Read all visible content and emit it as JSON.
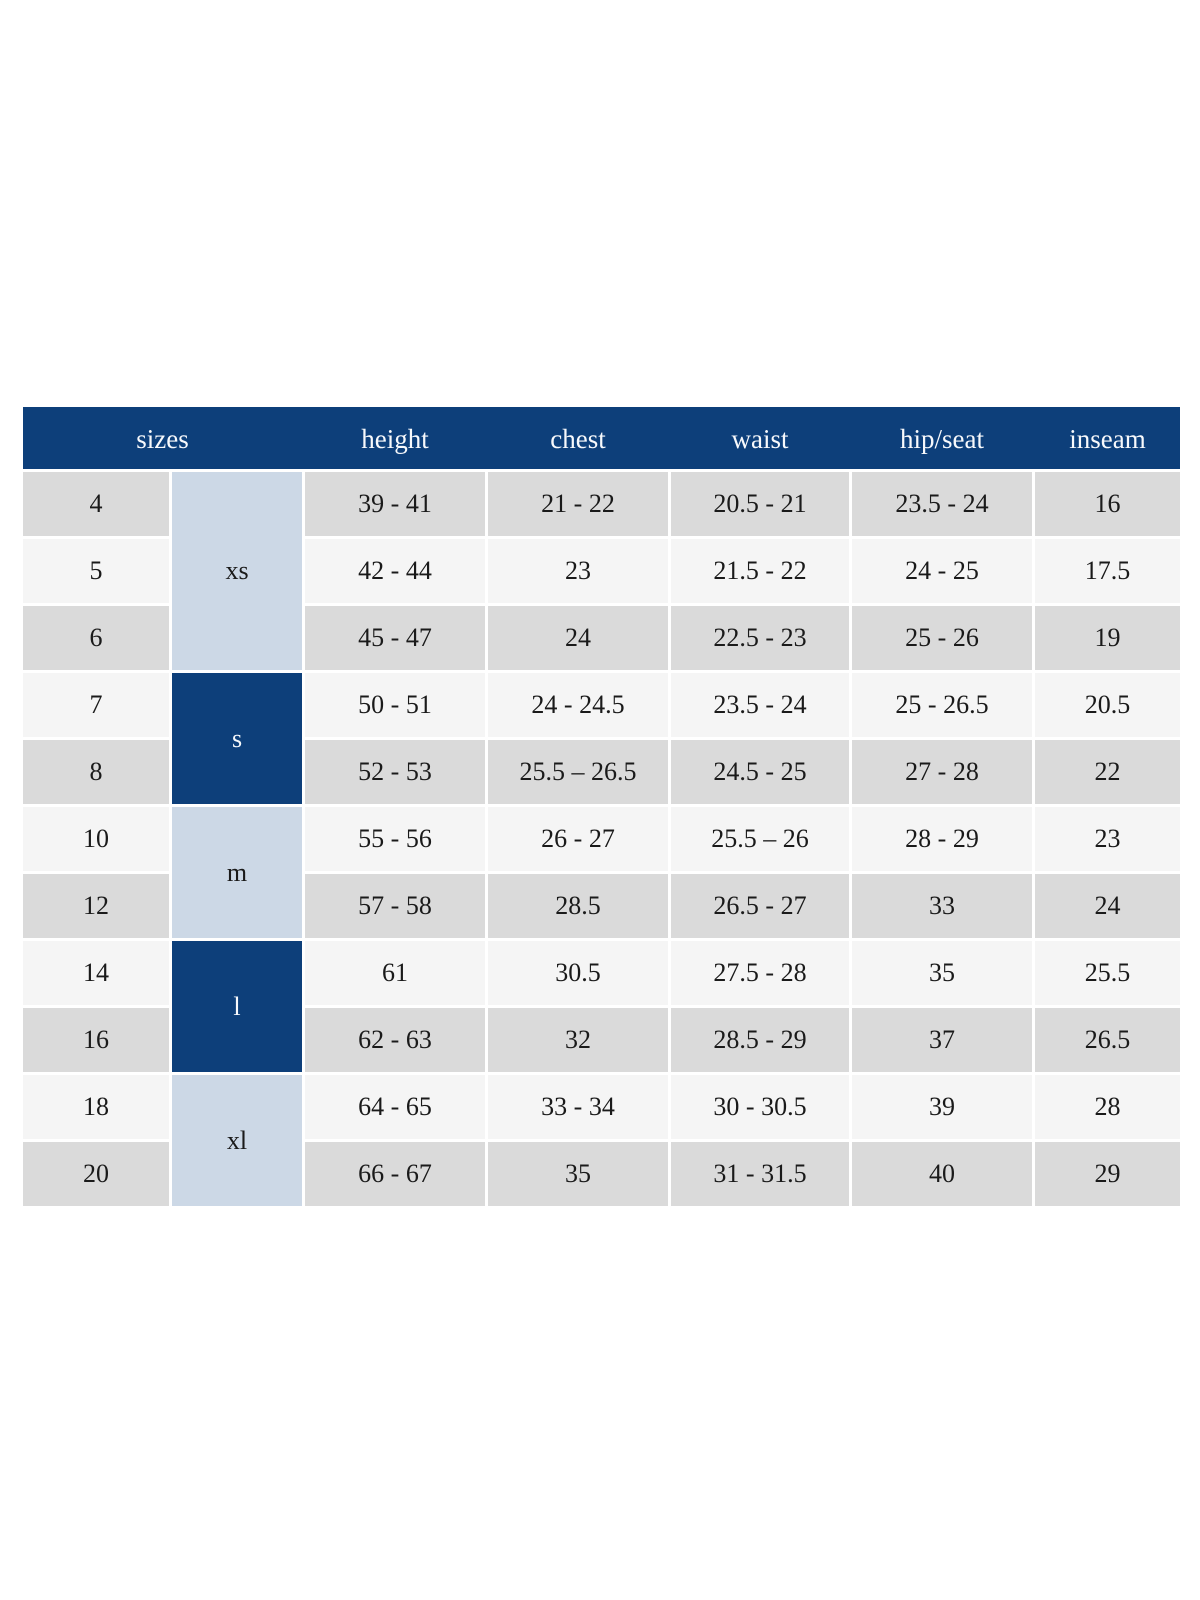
{
  "table": {
    "headers": [
      "sizes",
      "height",
      "chest",
      "waist",
      "hip/seat",
      "inseam"
    ],
    "groups": [
      {
        "label": "xs",
        "rows": 3,
        "variant": "light"
      },
      {
        "label": "s",
        "rows": 2,
        "variant": "dark"
      },
      {
        "label": "m",
        "rows": 2,
        "variant": "light"
      },
      {
        "label": "l",
        "rows": 2,
        "variant": "dark"
      },
      {
        "label": "xl",
        "rows": 2,
        "variant": "light"
      }
    ],
    "rows": [
      {
        "size": "4",
        "height": "39 - 41",
        "chest": "21 - 22",
        "waist": "20.5 - 21",
        "hip_seat": "23.5 - 24",
        "inseam": "16"
      },
      {
        "size": "5",
        "height": "42 - 44",
        "chest": "23",
        "waist": "21.5 - 22",
        "hip_seat": "24 - 25",
        "inseam": "17.5"
      },
      {
        "size": "6",
        "height": "45 - 47",
        "chest": "24",
        "waist": "22.5 - 23",
        "hip_seat": "25 - 26",
        "inseam": "19"
      },
      {
        "size": "7",
        "height": "50 - 51",
        "chest": "24 - 24.5",
        "waist": "23.5 - 24",
        "hip_seat": "25 - 26.5",
        "inseam": "20.5"
      },
      {
        "size": "8",
        "height": "52 - 53",
        "chest": "25.5 – 26.5",
        "waist": "24.5 - 25",
        "hip_seat": "27 - 28",
        "inseam": "22"
      },
      {
        "size": "10",
        "height": "55 - 56",
        "chest": "26 - 27",
        "waist": "25.5 – 26",
        "hip_seat": "28 - 29",
        "inseam": "23"
      },
      {
        "size": "12",
        "height": "57 - 58",
        "chest": "28.5",
        "waist": "26.5 - 27",
        "hip_seat": "33",
        "inseam": "24"
      },
      {
        "size": "14",
        "height": "61",
        "chest": "30.5",
        "waist": "27.5 - 28",
        "hip_seat": "35",
        "inseam": "25.5"
      },
      {
        "size": "16",
        "height": "62 - 63",
        "chest": "32",
        "waist": "28.5 - 29",
        "hip_seat": "37",
        "inseam": "26.5"
      },
      {
        "size": "18",
        "height": "64 - 65",
        "chest": "33 - 34",
        "waist": "30 - 30.5",
        "hip_seat": "39",
        "inseam": "28"
      },
      {
        "size": "20",
        "height": "66 - 67",
        "chest": "35",
        "waist": "31 - 31.5",
        "hip_seat": "40",
        "inseam": "29"
      }
    ]
  },
  "colors": {
    "header_blue": "#0d3f7a",
    "header_text": "#f7f9fc",
    "group_light_blue": "#ccd8e6",
    "row_gray": "#dadada",
    "row_light": "#f5f5f5",
    "text_dark": "#1a1a1a",
    "page_background": "#ffffff"
  }
}
